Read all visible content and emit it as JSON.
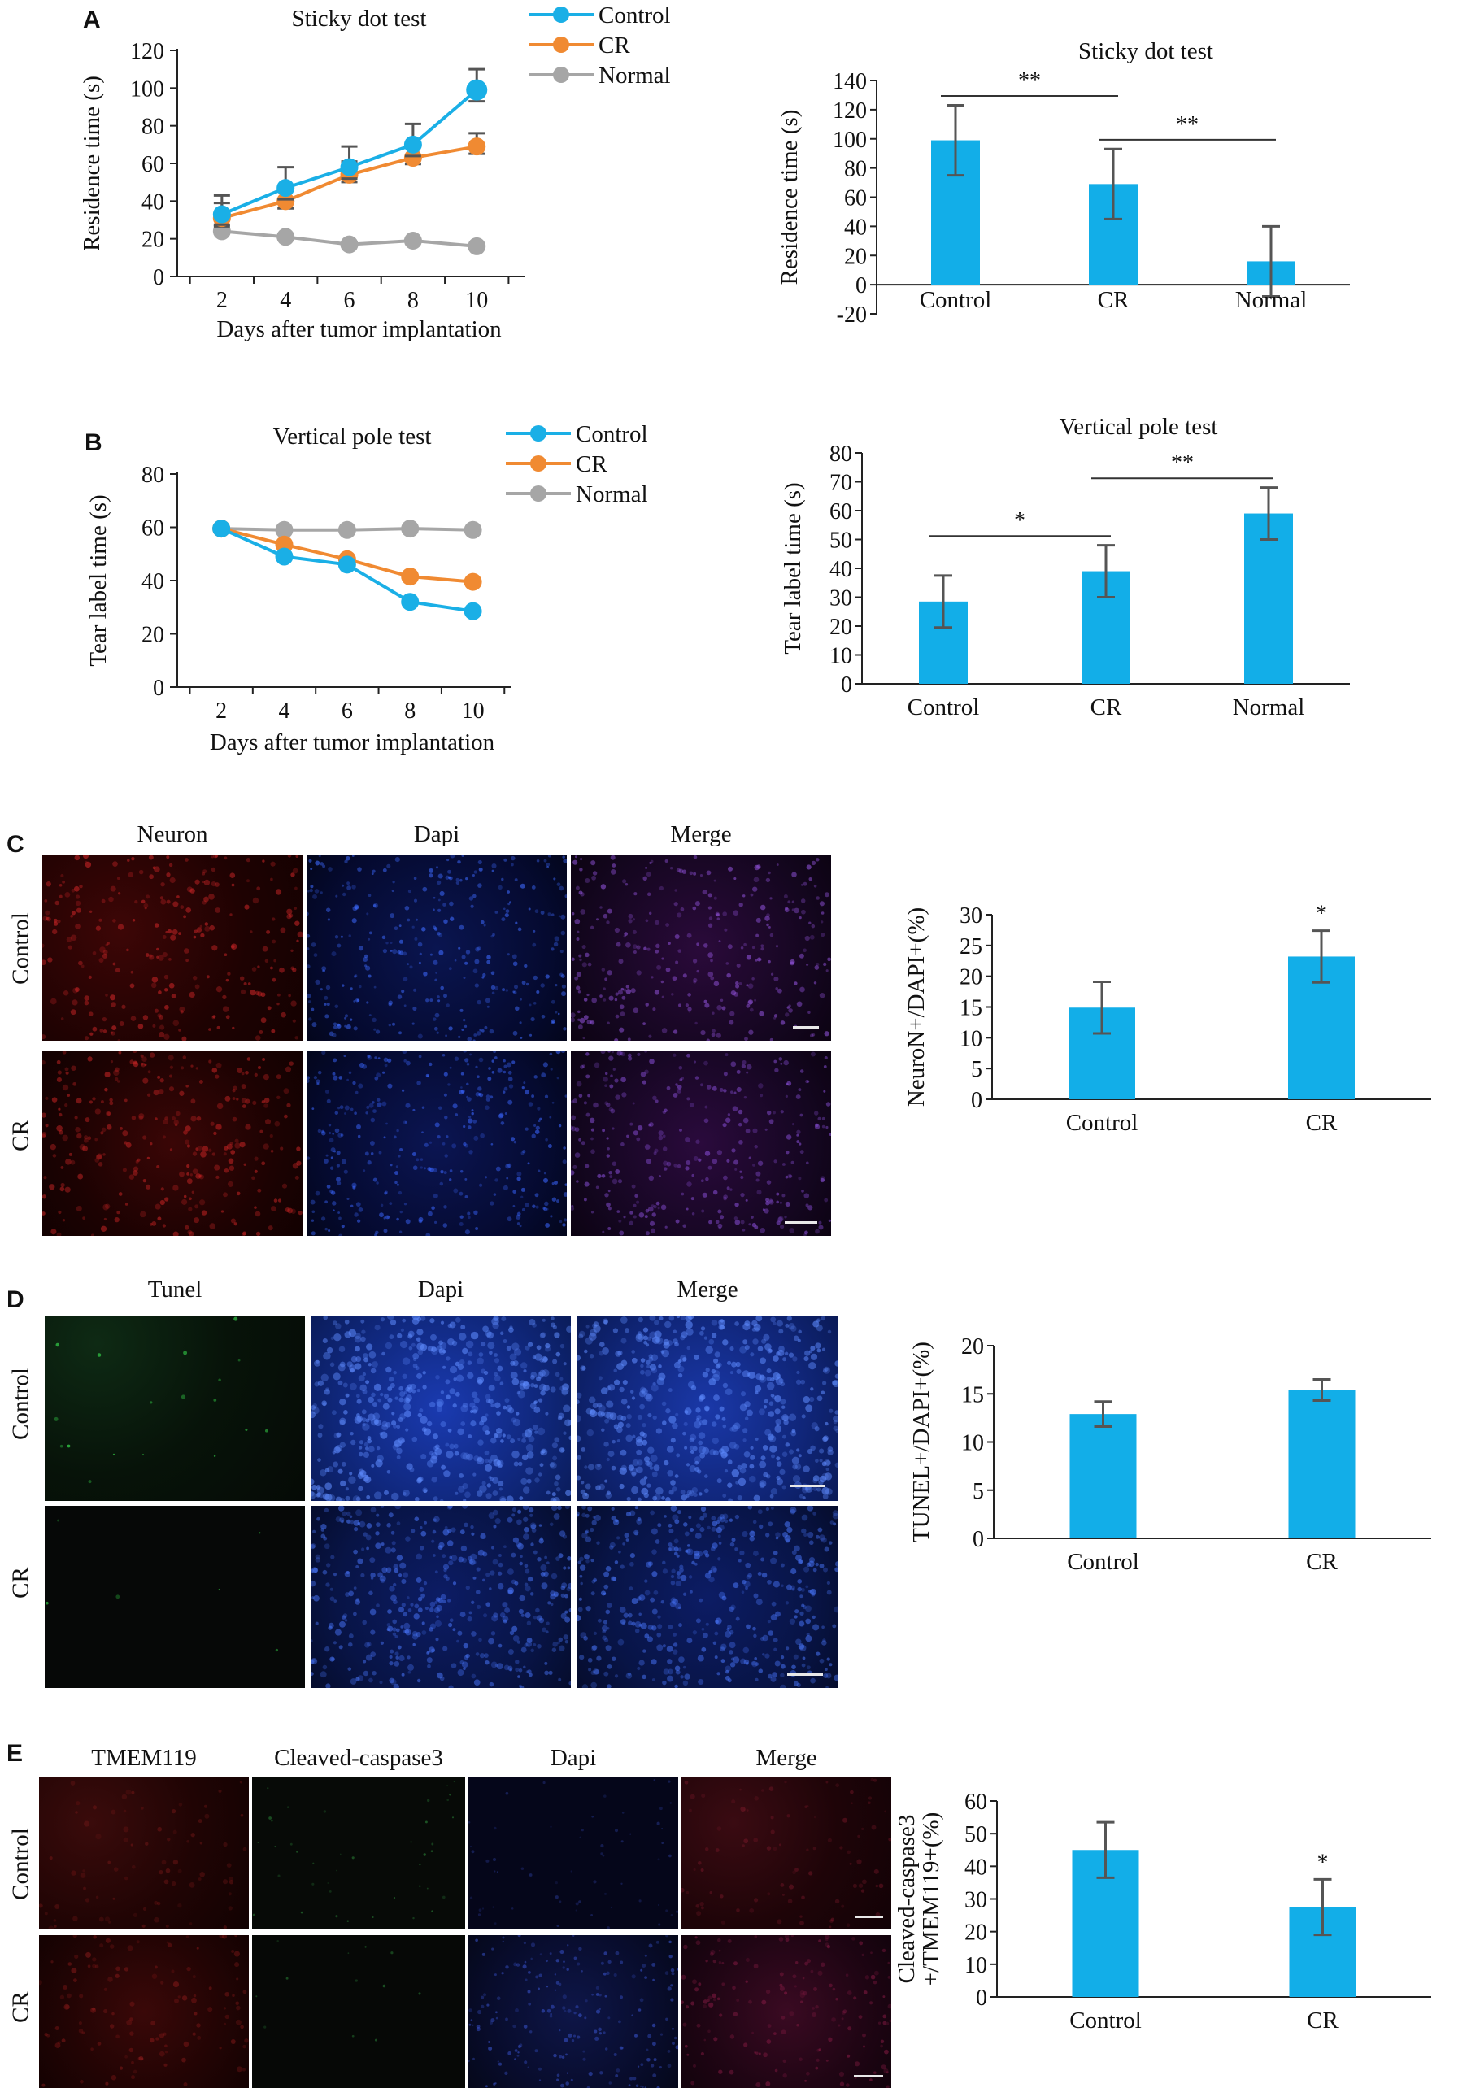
{
  "panels": {
    "A": {
      "letter": "A"
    },
    "B": {
      "letter": "B"
    },
    "C": {
      "letter": "C",
      "columns": [
        "Neuron",
        "Dapi",
        "Merge"
      ],
      "rows": [
        "Control",
        "CR"
      ]
    },
    "D": {
      "letter": "D",
      "columns": [
        "Tunel",
        "Dapi",
        "Merge"
      ],
      "rows": [
        "Control",
        "CR"
      ]
    },
    "E": {
      "letter": "E",
      "columns": [
        "TMEM119",
        "Cleaved-caspase3",
        "Dapi",
        "Merge"
      ],
      "rows": [
        "Control",
        "CR"
      ]
    }
  },
  "colors": {
    "control": "#1aafe6",
    "cr": "#f08a32",
    "normal": "#a6a6a6",
    "bar": "#12aee8",
    "error": "#555555"
  },
  "chart_data": [
    {
      "id": "A-line",
      "type": "line",
      "title": "Sticky dot test",
      "xlabel": "Days after tumor implantation",
      "ylabel": "Residence time (s)",
      "x": [
        2,
        4,
        6,
        8,
        10
      ],
      "xlim": [
        0.6,
        11.5
      ],
      "ylim": [
        0,
        120
      ],
      "yticks": [
        0,
        20,
        40,
        60,
        80,
        100,
        120
      ],
      "legend": "top-right",
      "series": [
        {
          "name": "Control",
          "color": "#1aafe6",
          "values": [
            33,
            47,
            58,
            70,
            99
          ],
          "err": [
            10,
            11,
            11,
            11,
            11
          ]
        },
        {
          "name": "CR",
          "color": "#f08a32",
          "values": [
            31,
            40,
            54,
            63,
            69
          ],
          "err": [
            8,
            7,
            7,
            6,
            7
          ]
        },
        {
          "name": "Normal",
          "color": "#a6a6a6",
          "values": [
            24,
            21,
            17,
            19,
            16
          ],
          "err": [
            0,
            0,
            0,
            0,
            0
          ]
        }
      ]
    },
    {
      "id": "A-bar",
      "type": "bar",
      "title": "Sticky dot test",
      "ylabel": "Residence time (s)",
      "categories": [
        "Control",
        "CR",
        "Normal"
      ],
      "values": [
        99,
        69,
        16
      ],
      "err": [
        24,
        24,
        24
      ],
      "ylim": [
        -20,
        140
      ],
      "yticks": [
        -20,
        0,
        20,
        40,
        60,
        80,
        100,
        120,
        140
      ],
      "significance": [
        {
          "from": 0,
          "to": 1,
          "label": "**"
        },
        {
          "from": 1,
          "to": 2,
          "label": "**"
        }
      ]
    },
    {
      "id": "B-line",
      "type": "line",
      "title": "Vertical pole test",
      "xlabel": "Days after tumor implantation",
      "ylabel": "Tear label time (s)",
      "x": [
        2,
        4,
        6,
        8,
        10
      ],
      "xlim": [
        0.6,
        11.2
      ],
      "ylim": [
        0,
        80
      ],
      "yticks": [
        0,
        20,
        40,
        60,
        80
      ],
      "legend": "top-right",
      "series": [
        {
          "name": "Control",
          "color": "#1aafe6",
          "values": [
            59.5,
            49,
            46,
            32,
            28.5
          ],
          "err": [
            0,
            0,
            0,
            0,
            0
          ]
        },
        {
          "name": "CR",
          "color": "#f08a32",
          "values": [
            59.5,
            53.5,
            48,
            41.5,
            39.5
          ],
          "err": [
            0,
            0,
            0,
            0,
            0
          ]
        },
        {
          "name": "Normal",
          "color": "#a6a6a6",
          "values": [
            59.5,
            59,
            59,
            59.5,
            59
          ],
          "err": [
            0,
            0,
            0,
            0,
            0
          ]
        }
      ]
    },
    {
      "id": "B-bar",
      "type": "bar",
      "title": "Vertical pole test",
      "ylabel": "Tear label time (s)",
      "categories": [
        "Control",
        "CR",
        "Normal"
      ],
      "values": [
        28.5,
        39,
        59
      ],
      "err": [
        9,
        9,
        9
      ],
      "ylim": [
        0,
        80
      ],
      "yticks": [
        0,
        10,
        20,
        30,
        40,
        50,
        60,
        70,
        80
      ],
      "significance": [
        {
          "from": 0,
          "to": 1,
          "label": "*"
        },
        {
          "from": 1,
          "to": 2,
          "label": "**"
        }
      ]
    },
    {
      "id": "C-bar",
      "type": "bar",
      "title": "",
      "ylabel": "NeuroN+/DAPI+(%)",
      "categories": [
        "Control",
        "CR"
      ],
      "values": [
        14.9,
        23.2
      ],
      "err": [
        4.2,
        4.2
      ],
      "ylim": [
        0,
        30
      ],
      "yticks": [
        0,
        5,
        10,
        15,
        20,
        25,
        30
      ],
      "annotations": [
        {
          "index": 1,
          "label": "*"
        }
      ]
    },
    {
      "id": "D-bar",
      "type": "bar",
      "title": "",
      "ylabel": "TUNEL+/DAPI+(%)",
      "categories": [
        "Control",
        "CR"
      ],
      "values": [
        12.9,
        15.4
      ],
      "err": [
        1.3,
        1.1
      ],
      "ylim": [
        0,
        20
      ],
      "yticks": [
        0,
        5,
        10,
        15,
        20
      ],
      "annotations": []
    },
    {
      "id": "E-bar",
      "type": "bar",
      "title": "",
      "ylabel": "Cleaved-caspase3 +/TMEM119+(%)",
      "ylabel_lines": [
        "Cleaved-caspase3",
        "+/TMEM119+(%)"
      ],
      "categories": [
        "Control",
        "CR"
      ],
      "values": [
        45,
        27.5
      ],
      "err": [
        8.5,
        8.5
      ],
      "ylim": [
        0,
        60
      ],
      "yticks": [
        0,
        10,
        20,
        30,
        40,
        50,
        60
      ],
      "annotations": [
        {
          "index": 1,
          "label": "*"
        }
      ]
    }
  ]
}
